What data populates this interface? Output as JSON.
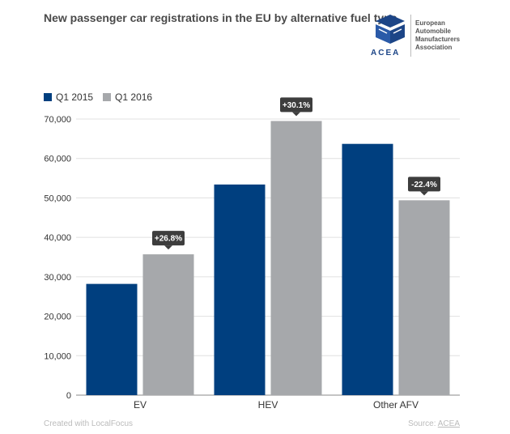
{
  "header": {
    "title": "New passenger car registrations in the EU by alternative fuel type"
  },
  "logo": {
    "short": "ACEA",
    "org_lines": [
      "European",
      "Automobile",
      "Manufacturers",
      "Association"
    ]
  },
  "footer": {
    "created_with": "Created with LocalFocus",
    "source_label": "Source:",
    "source_name": "ACEA"
  },
  "colors": {
    "q1_2015": "#003f7f",
    "q1_2016": "#a6a8ab",
    "tooltip": "#3d3d3d",
    "grid": "#e0e0e0",
    "logo_blue": "#1c4587"
  },
  "chart_data": {
    "type": "bar",
    "categories": [
      "EV",
      "HEV",
      "Other AFV"
    ],
    "series": [
      {
        "name": "Q1 2015",
        "values": [
          28200,
          53400,
          63700
        ]
      },
      {
        "name": "Q1 2016",
        "values": [
          35700,
          69500,
          49400
        ]
      }
    ],
    "annotations": [
      "+26.8%",
      "+30.1%",
      "-22.4%"
    ],
    "ylim": [
      0,
      70000
    ],
    "yticks": [
      0,
      10000,
      20000,
      30000,
      40000,
      50000,
      60000,
      70000
    ],
    "ytick_labels": [
      "0",
      "10,000",
      "20,000",
      "30,000",
      "40,000",
      "50,000",
      "60,000",
      "70,000"
    ],
    "title": "New passenger car registrations in the EU by alternative fuel type",
    "xlabel": "",
    "ylabel": "",
    "legend_position": "top-left",
    "grid": true
  }
}
